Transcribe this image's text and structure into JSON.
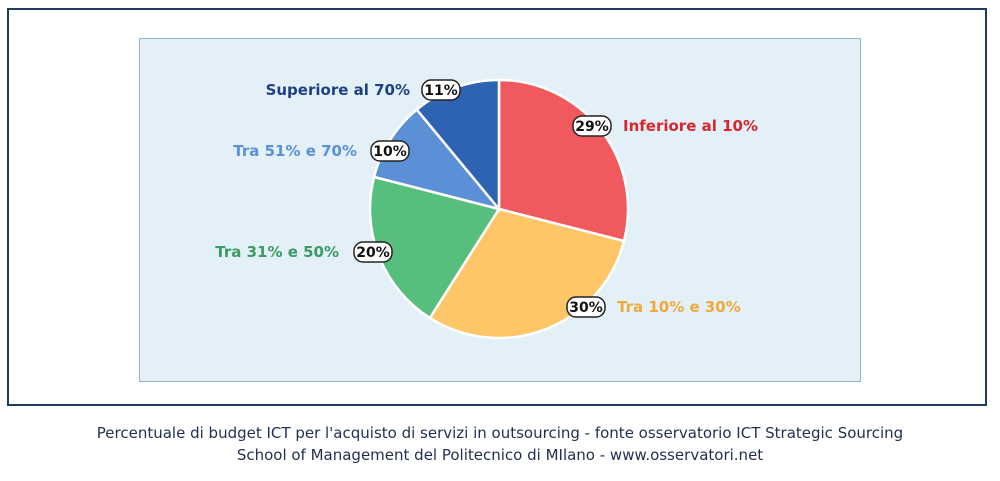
{
  "chart_data": {
    "type": "pie",
    "slices": [
      {
        "label": "Inferiore al 10%",
        "value": 29,
        "pct_label": "29%",
        "color": "#f05a5f"
      },
      {
        "label": "Tra 10% e 30%",
        "value": 30,
        "pct_label": "30%",
        "color": "#fec666"
      },
      {
        "label": "Tra 31% e 50%",
        "value": 20,
        "pct_label": "20%",
        "color": "#57bf7d"
      },
      {
        "label": "Tra 51% e 70%",
        "value": 10,
        "pct_label": "10%",
        "color": "#5b90d6"
      },
      {
        "label": "Superiore al 70%",
        "value": 11,
        "pct_label": "11%",
        "color": "#2e63b4"
      }
    ],
    "label_colors": [
      "#d8262f",
      "#f0aa3a",
      "#3c9b63",
      "#5b90d6",
      "#1f4085"
    ],
    "background_color": "#e3f0f7"
  },
  "caption": {
    "line1": "Percentuale di budget ICT per l'acquisto di servizi in outsourcing - fonte osservatorio ICT Strategic Sourcing",
    "line2": "School of Management del Politecnico di MIlano - www.osservatori.net"
  }
}
